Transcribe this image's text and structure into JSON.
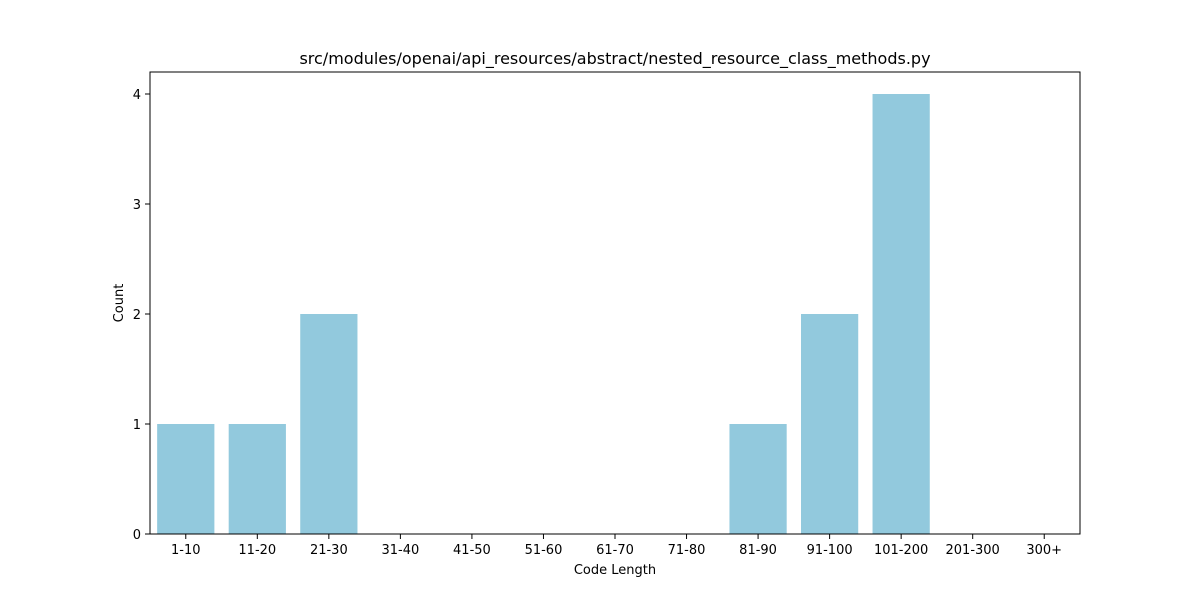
{
  "chart_data": {
    "type": "bar",
    "title": "src/modules/openai/api_resources/abstract/nested_resource_class_methods.py",
    "xlabel": "Code Length",
    "ylabel": "Count",
    "categories": [
      "1-10",
      "11-20",
      "21-30",
      "31-40",
      "41-50",
      "51-60",
      "61-70",
      "71-80",
      "81-90",
      "91-100",
      "101-200",
      "201-300",
      "300+"
    ],
    "values": [
      1,
      1,
      2,
      0,
      0,
      0,
      0,
      0,
      1,
      2,
      4,
      0,
      0
    ],
    "ylim": [
      0,
      4.2
    ],
    "yticks": [
      0,
      1,
      2,
      3,
      4
    ],
    "grid": false,
    "bar_color": "#92c9dd"
  }
}
